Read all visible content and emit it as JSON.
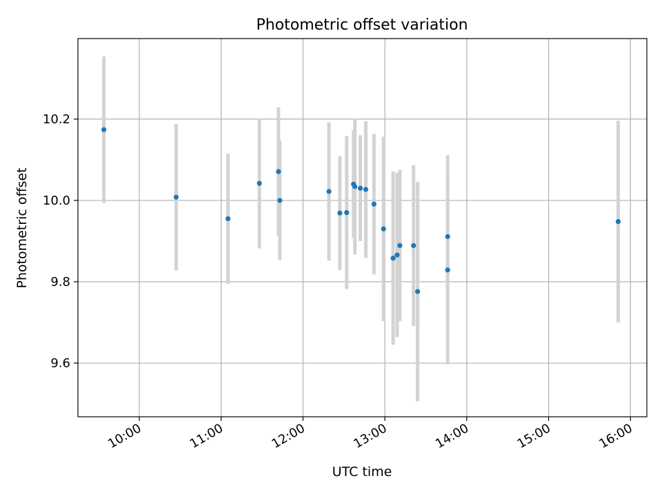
{
  "chart_data": {
    "type": "scatter",
    "title": "Photometric offset variation",
    "xlabel": "UTC time",
    "ylabel": "Photometric offset",
    "x_ticks": [
      "10:00",
      "11:00",
      "12:00",
      "13:00",
      "14:00",
      "15:00",
      "16:00"
    ],
    "y_ticks": [
      "9.6",
      "9.8",
      "10.0",
      "10.2"
    ],
    "xlim": [
      "09:15",
      "16:12"
    ],
    "ylim": [
      9.468,
      10.398
    ],
    "grid": true,
    "marker_color": "#1f77b4",
    "errorbar_color": "#d3d3d3",
    "points": [
      {
        "x": "09:34",
        "y": 10.174,
        "yerr": 0.18
      },
      {
        "x": "10:27",
        "y": 10.008,
        "yerr": 0.18
      },
      {
        "x": "11:05",
        "y": 9.955,
        "yerr": 0.16
      },
      {
        "x": "11:28",
        "y": 10.042,
        "yerr": 0.16
      },
      {
        "x": "11:42",
        "y": 10.071,
        "yerr": 0.158
      },
      {
        "x": "11:43",
        "y": 10.0,
        "yerr": 0.147
      },
      {
        "x": "12:19",
        "y": 10.022,
        "yerr": 0.17
      },
      {
        "x": "12:27",
        "y": 9.969,
        "yerr": 0.14
      },
      {
        "x": "12:32",
        "y": 9.97,
        "yerr": 0.188
      },
      {
        "x": "12:37",
        "y": 10.04,
        "yerr": 0.132
      },
      {
        "x": "12:38",
        "y": 10.034,
        "yerr": 0.167
      },
      {
        "x": "12:42",
        "y": 10.03,
        "yerr": 0.13
      },
      {
        "x": "12:46",
        "y": 10.027,
        "yerr": 0.168
      },
      {
        "x": "12:52",
        "y": 9.991,
        "yerr": 0.173
      },
      {
        "x": "12:59",
        "y": 9.93,
        "yerr": 0.227
      },
      {
        "x": "13:06",
        "y": 9.858,
        "yerr": 0.213
      },
      {
        "x": "13:09",
        "y": 9.866,
        "yerr": 0.202
      },
      {
        "x": "13:11",
        "y": 9.889,
        "yerr": 0.186
      },
      {
        "x": "13:21",
        "y": 9.889,
        "yerr": 0.198
      },
      {
        "x": "13:24",
        "y": 9.776,
        "yerr": 0.27
      },
      {
        "x": "13:46",
        "y": 9.911,
        "yerr": 0.2
      },
      {
        "x": "13:46",
        "y": 9.829,
        "yerr": 0.232
      },
      {
        "x": "15:51",
        "y": 9.948,
        "yerr": 0.248
      }
    ]
  }
}
